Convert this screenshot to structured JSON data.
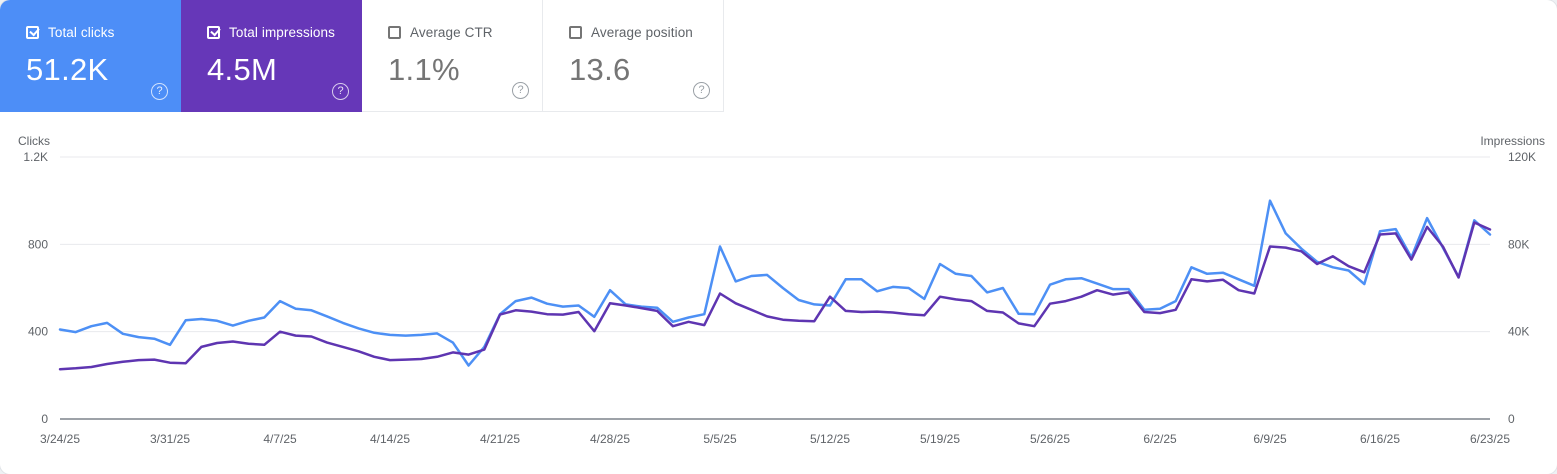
{
  "cards": [
    {
      "id": "total-clicks",
      "label": "Total clicks",
      "value": "51.2K",
      "checked": true,
      "bg": "#4d8ef7",
      "help_icon": "?"
    },
    {
      "id": "total-impressions",
      "label": "Total impressions",
      "value": "4.5M",
      "checked": true,
      "bg": "#6637b8",
      "help_icon": "?"
    },
    {
      "id": "average-ctr",
      "label": "Average CTR",
      "value": "1.1%",
      "checked": false,
      "bg": "#ffffff",
      "help_icon": "?"
    },
    {
      "id": "average-position",
      "label": "Average position",
      "value": "13.6",
      "checked": false,
      "bg": "#ffffff",
      "help_icon": "?"
    }
  ],
  "chart_data": {
    "type": "line",
    "x_unit": "day",
    "x_tick_labels": [
      "3/24/25",
      "3/31/25",
      "4/7/25",
      "4/14/25",
      "4/21/25",
      "4/28/25",
      "5/5/25",
      "5/12/25",
      "5/19/25",
      "5/26/25",
      "6/2/25",
      "6/9/25",
      "6/16/25",
      "6/23/25"
    ],
    "left_axis": {
      "title": "Clicks",
      "ticks": [
        "0",
        "400",
        "800",
        "1.2K"
      ],
      "range": [
        0,
        1200
      ]
    },
    "right_axis": {
      "title": "Impressions",
      "ticks": [
        "0",
        "40K",
        "80K",
        "120K"
      ],
      "range": [
        0,
        120000
      ]
    },
    "grid": "horizontal",
    "legend_position": "none",
    "series": [
      {
        "name": "Total clicks",
        "axis": "left",
        "color": "#4d90f5",
        "values": [
          410,
          398,
          425,
          440,
          390,
          375,
          368,
          340,
          452,
          458,
          450,
          428,
          450,
          465,
          540,
          505,
          498,
          470,
          440,
          415,
          395,
          385,
          382,
          385,
          392,
          350,
          245,
          330,
          480,
          540,
          556,
          528,
          515,
          520,
          468,
          590,
          525,
          515,
          510,
          445,
          465,
          480,
          790,
          630,
          655,
          660,
          600,
          545,
          525,
          520,
          640,
          640,
          585,
          605,
          600,
          550,
          710,
          665,
          655,
          580,
          600,
          482,
          480,
          615,
          640,
          645,
          620,
          595,
          595,
          500,
          505,
          540,
          695,
          665,
          670,
          640,
          610,
          1000,
          850,
          780,
          720,
          695,
          680,
          618,
          860,
          870,
          740,
          920,
          785,
          650,
          910,
          845
        ]
      },
      {
        "name": "Total impressions",
        "axis": "right",
        "color": "#5e35b1",
        "values": [
          22800,
          23200,
          23800,
          25200,
          26200,
          27000,
          27200,
          25800,
          25500,
          33000,
          34800,
          35500,
          34500,
          34000,
          40000,
          38200,
          37800,
          35000,
          33000,
          31000,
          28500,
          27000,
          27200,
          27500,
          28500,
          30500,
          29500,
          31800,
          47800,
          49800,
          49200,
          48000,
          47800,
          49000,
          40200,
          53000,
          52000,
          50800,
          49500,
          42500,
          44500,
          43000,
          57500,
          53000,
          50000,
          47000,
          45500,
          45000,
          44800,
          56000,
          49500,
          49000,
          49200,
          48800,
          48000,
          47500,
          56000,
          54800,
          54000,
          49500,
          48800,
          43800,
          42500,
          52800,
          54000,
          56000,
          59000,
          57000,
          58000,
          49000,
          48500,
          50000,
          64000,
          63000,
          63800,
          59000,
          57500,
          79000,
          78500,
          76800,
          71000,
          74500,
          70000,
          67200,
          84500,
          85000,
          73000,
          88000,
          79000,
          64800,
          90000,
          86800
        ]
      }
    ]
  },
  "colors": {
    "gridline": "#e8eaed",
    "baseline": "#9da2a8",
    "axis_text": "#5f6368"
  }
}
